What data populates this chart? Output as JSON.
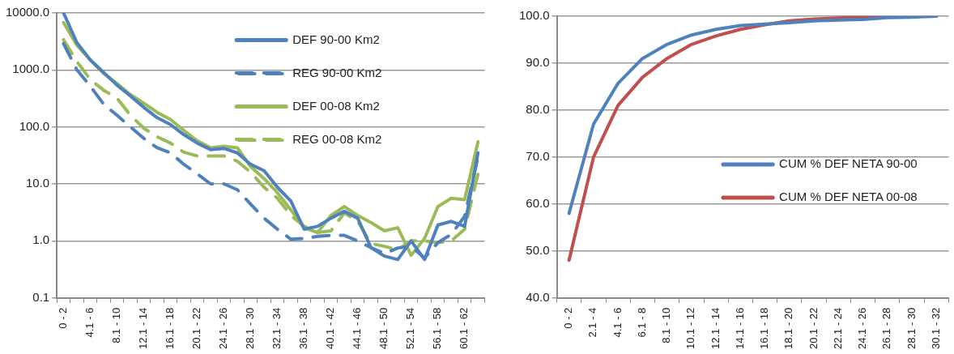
{
  "chart_data": [
    {
      "type": "line",
      "categories": [
        "0 - 2",
        null,
        "4.1 - 6",
        null,
        "8.1 - 10",
        null,
        "12.1 - 14",
        null,
        "16.1 - 18",
        null,
        "20.1 - 22",
        null,
        "24.1 - 26",
        null,
        "28.1 - 30",
        null,
        "32.1 - 34",
        null,
        "36.1 - 38",
        null,
        "40.1 - 42",
        null,
        "44.1 - 46",
        null,
        "48.1 - 50",
        null,
        "52.1 - 54",
        null,
        "56.1 - 58",
        null,
        "60.1 - 62",
        null
      ],
      "series": [
        {
          "name": "DEF 90-00 Km2",
          "color": "#4f81bd",
          "line_style": "solid",
          "values": [
            10000,
            3000,
            1500,
            900,
            540,
            350,
            220,
            145,
            110,
            73,
            52,
            40,
            42,
            35,
            22,
            17,
            8.7,
            5,
            1.6,
            1.8,
            2.5,
            3.3,
            2.5,
            0.76,
            0.54,
            0.47,
            1.0,
            0.47,
            1.9,
            2.2,
            1.8,
            35
          ]
        },
        {
          "name": "REG 90-00 Km2",
          "color": "#4f81bd",
          "line_style": "dashed",
          "values": [
            2900,
            1000,
            520,
            250,
            160,
            100,
            63,
            43,
            35,
            22,
            15,
            10,
            10,
            7.9,
            4.4,
            2.5,
            1.6,
            1.07,
            1.1,
            1.2,
            1.25,
            1.25,
            1.0,
            0.76,
            0.6,
            0.75,
            0.8,
            0.5,
            0.93,
            1.3,
            2.7,
            30
          ]
        },
        {
          "name": "DEF 00-08 Km2",
          "color": "#9bbb59",
          "line_style": "solid",
          "values": [
            6800,
            2700,
            1500,
            870,
            580,
            370,
            260,
            180,
            135,
            87,
            57,
            43,
            46,
            43,
            20,
            12.4,
            7,
            3.5,
            1.7,
            1.4,
            2.8,
            4,
            2.8,
            2.1,
            1.5,
            1.7,
            0.56,
            1.1,
            4,
            5.6,
            5.3,
            55
          ]
        },
        {
          "name": "REG 00-08 Km2",
          "color": "#9bbb59",
          "line_style": "dashed",
          "values": [
            3400,
            1400,
            680,
            440,
            320,
            160,
            95,
            67,
            52,
            36,
            31,
            31,
            31,
            25,
            16,
            8.7,
            5.6,
            2.8,
            1.8,
            1.4,
            1.5,
            3.1,
            2.2,
            0.9,
            0.8,
            0.7,
            1.0,
            1.0,
            0.93,
            1.0,
            1.6,
            15
          ]
        }
      ],
      "log": "y",
      "ylim": [
        0.1,
        10000
      ],
      "yticks": [
        {
          "value": 0.1,
          "label": "0.1"
        },
        {
          "value": 1,
          "label": "1.0"
        },
        {
          "value": 10,
          "label": "10.0"
        },
        {
          "value": 100,
          "label": "100.0"
        },
        {
          "value": 1000,
          "label": "1000.0"
        },
        {
          "value": 10000,
          "label": "10000.0"
        }
      ],
      "grid": "y",
      "legend": "top right",
      "marker": "none"
    },
    {
      "type": "line",
      "categories": [
        "0 - 2",
        "2.1 - 4",
        "4.1 - 6",
        "6.1 - 8",
        "8.1 - 10",
        "10.1 - 12",
        "12.1 - 14",
        "14.1 - 16",
        "16.1 - 18",
        "18.1 - 20",
        "20.1 - 22",
        "22.1 - 24",
        "24.1 - 26",
        "26.1 - 28",
        "28.1 - 30",
        "30.1 - 32"
      ],
      "series": [
        {
          "name": "CUM % DEF NETA 90-00",
          "color": "#4f81bd",
          "values": [
            58,
            77,
            85.7,
            91,
            94,
            96,
            97.2,
            98,
            98.3,
            98.6,
            99,
            99.2,
            99.3,
            99.7,
            99.8,
            100
          ]
        },
        {
          "name": "CUM % DEF NETA 00-08",
          "color": "#c0504d",
          "values": [
            48,
            70,
            81,
            87,
            91,
            94,
            95.8,
            97.2,
            98.2,
            99,
            99.4,
            99.6,
            99.8,
            99.9,
            100,
            100
          ]
        }
      ],
      "ylim": [
        40,
        100
      ],
      "yticks": [
        {
          "value": 40,
          "label": "40.0"
        },
        {
          "value": 50,
          "label": "50.0"
        },
        {
          "value": 60,
          "label": "60.0"
        },
        {
          "value": 70,
          "label": "70.0"
        },
        {
          "value": 80,
          "label": "80.0"
        },
        {
          "value": 90,
          "label": "90.0"
        },
        {
          "value": 100,
          "label": "100.0"
        }
      ],
      "grid": "y",
      "legend": "right",
      "marker": "none"
    }
  ]
}
